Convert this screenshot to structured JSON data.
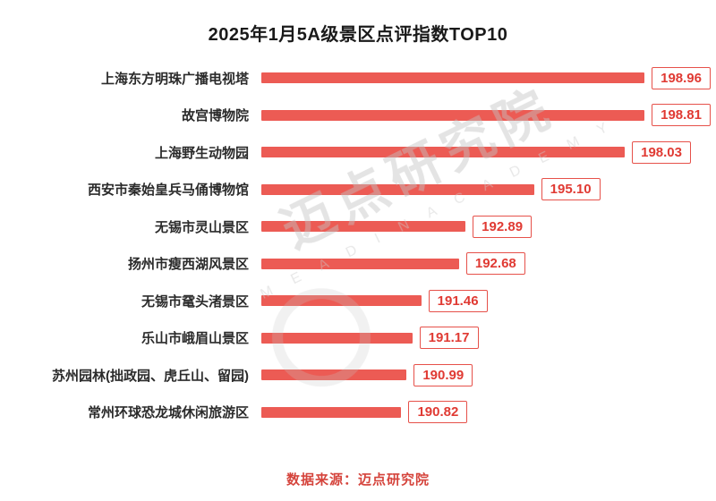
{
  "title": "2025年1月5A级景区点评指数TOP10",
  "footer": {
    "source_label": "数据来源：迈点研究院"
  },
  "watermark": {
    "line1": "迈点研究院",
    "line2": "M E A D I N   A C A D E M Y"
  },
  "colors": {
    "bar": "#ec5b54",
    "badge_border": "#e6514a",
    "badge_text": "#e03a33",
    "footer_text": "#d5443c",
    "title_text": "#1a1a1a",
    "watermark": "#c9c9c9"
  },
  "chart_data": {
    "type": "bar",
    "orientation": "horizontal",
    "title": "2025年1月5A级景区点评指数TOP10",
    "categories": [
      "上海东方明珠广播电视塔",
      "故宫博物院",
      "上海野生动物园",
      "西安市秦始皇兵马俑博物馆",
      "无锡市灵山景区",
      "扬州市瘦西湖风景区",
      "无锡市鼋头渚景区",
      "乐山市峨眉山景区",
      "苏州园林(拙政园、虎丘山、留园)",
      "常州环球恐龙城休闲旅游区"
    ],
    "values": [
      198.96,
      198.81,
      198.03,
      195.1,
      192.89,
      192.68,
      191.46,
      191.17,
      190.99,
      190.82
    ],
    "value_labels": [
      "198.96",
      "198.81",
      "198.03",
      "195.10",
      "192.89",
      "192.68",
      "191.46",
      "191.17",
      "190.99",
      "190.82"
    ],
    "xlim": [
      186.3,
      200.8
    ],
    "grid": false,
    "legend": "none",
    "source": "数据来源：迈点研究院"
  }
}
